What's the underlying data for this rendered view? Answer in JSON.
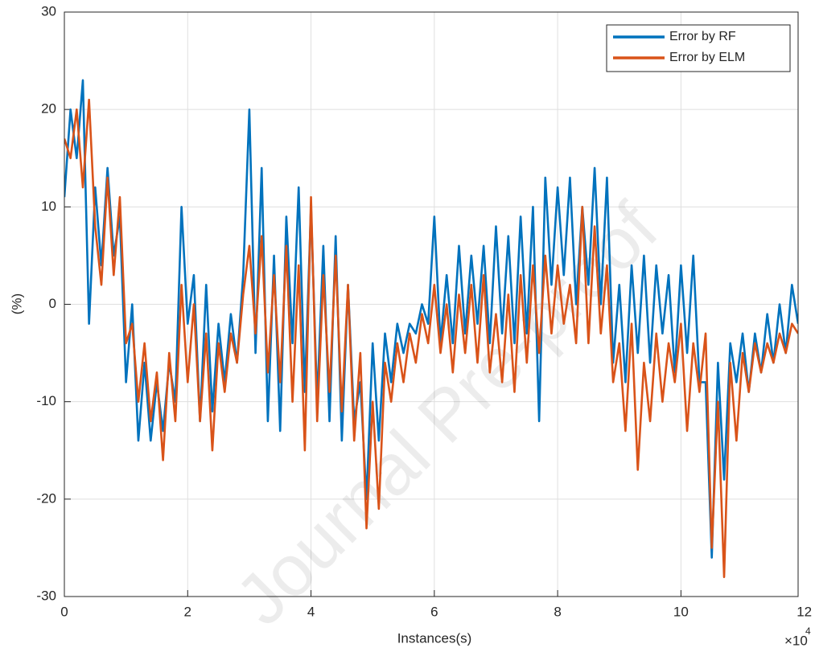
{
  "chart_data": {
    "type": "line",
    "x_label": "Instances(s)",
    "y_label": "(%)",
    "x_exponent_base": "×10",
    "x_exponent_power": "4",
    "watermark": "Journal Pre-proof",
    "x": [
      0,
      1000,
      2000,
      3000,
      4000,
      5000,
      6000,
      7000,
      8000,
      9000,
      10000,
      11000,
      12000,
      13000,
      14000,
      15000,
      16000,
      17000,
      18000,
      19000,
      20000,
      21000,
      22000,
      23000,
      24000,
      25000,
      26000,
      27000,
      28000,
      29000,
      30000,
      31000,
      32000,
      33000,
      34000,
      35000,
      36000,
      37000,
      38000,
      39000,
      40000,
      41000,
      42000,
      43000,
      44000,
      45000,
      46000,
      47000,
      48000,
      49000,
      50000,
      51000,
      52000,
      53000,
      54000,
      55000,
      56000,
      57000,
      58000,
      59000,
      60000,
      61000,
      62000,
      63000,
      64000,
      65000,
      66000,
      67000,
      68000,
      69000,
      70000,
      71000,
      72000,
      73000,
      74000,
      75000,
      76000,
      77000,
      78000,
      79000,
      80000,
      81000,
      82000,
      83000,
      84000,
      85000,
      86000,
      87000,
      88000,
      89000,
      90000,
      91000,
      92000,
      93000,
      94000,
      95000,
      96000,
      97000,
      98000,
      99000,
      100000,
      101000,
      102000,
      103000,
      104000,
      105000,
      106000,
      107000,
      108000,
      109000,
      110000,
      111000,
      112000,
      113000,
      114000,
      115000,
      116000,
      117000,
      118000,
      119000
    ],
    "series": [
      {
        "name": "Error by RF",
        "color": "#0072BD",
        "values": [
          11,
          20,
          15,
          23,
          -2,
          12,
          4,
          14,
          5,
          9,
          -8,
          0,
          -14,
          -6,
          -14,
          -8,
          -13,
          -6,
          -10,
          10,
          -2,
          3,
          -12,
          2,
          -11,
          -2,
          -8,
          -1,
          -6,
          3,
          20,
          -5,
          14,
          -12,
          5,
          -13,
          9,
          -4,
          12,
          -9,
          10,
          -10,
          6,
          -12,
          7,
          -14,
          2,
          -12,
          -8,
          -20,
          -4,
          -14,
          -3,
          -8,
          -2,
          -5,
          -2,
          -3,
          0,
          -2,
          9,
          -4,
          3,
          -4,
          6,
          -3,
          5,
          -2,
          6,
          -4,
          8,
          -3,
          7,
          -4,
          9,
          -3,
          10,
          -12,
          13,
          2,
          12,
          3,
          13,
          0,
          10,
          2,
          14,
          0,
          13,
          -6,
          2,
          -8,
          4,
          -5,
          5,
          -6,
          4,
          -3,
          3,
          -7,
          4,
          -5,
          5,
          -8,
          -8,
          -26,
          -6,
          -18,
          -4,
          -8,
          -3,
          -9,
          -3,
          -7,
          -1,
          -6,
          0,
          -5,
          2,
          -2
        ]
      },
      {
        "name": "Error by ELM",
        "color": "#D95319",
        "values": [
          17,
          15,
          20,
          12,
          21,
          8,
          2,
          13,
          3,
          11,
          -4,
          -2,
          -10,
          -4,
          -12,
          -7,
          -16,
          -5,
          -12,
          2,
          -8,
          0,
          -12,
          -3,
          -15,
          -4,
          -9,
          -3,
          -6,
          1,
          6,
          -3,
          7,
          -7,
          3,
          -8,
          6,
          -10,
          4,
          -15,
          11,
          -12,
          3,
          -9,
          5,
          -11,
          2,
          -14,
          -5,
          -23,
          -10,
          -21,
          -6,
          -10,
          -4,
          -8,
          -3,
          -6,
          -1,
          -4,
          2,
          -5,
          0,
          -7,
          1,
          -5,
          2,
          -6,
          3,
          -7,
          -1,
          -8,
          1,
          -9,
          3,
          -6,
          4,
          -5,
          5,
          -3,
          4,
          -2,
          2,
          -4,
          10,
          -4,
          8,
          -3,
          4,
          -8,
          -4,
          -13,
          -2,
          -17,
          -6,
          -12,
          -3,
          -10,
          -4,
          -8,
          -2,
          -13,
          -4,
          -9,
          -3,
          -25,
          -10,
          -28,
          -6,
          -14,
          -5,
          -9,
          -4,
          -7,
          -4,
          -6,
          -3,
          -5,
          -2,
          -3
        ]
      }
    ],
    "xlim": [
      0,
      119000
    ],
    "xticks": [
      {
        "value": 0,
        "label": "0"
      },
      {
        "value": 20000,
        "label": "2"
      },
      {
        "value": 40000,
        "label": "4"
      },
      {
        "value": 60000,
        "label": "6"
      },
      {
        "value": 80000,
        "label": "8"
      },
      {
        "value": 100000,
        "label": "10"
      },
      {
        "value": 120000,
        "label": "12"
      }
    ],
    "ylim": [
      -30,
      30
    ],
    "yticks": [
      -30,
      -20,
      -10,
      0,
      10,
      20,
      30
    ],
    "grid": true,
    "legend": "top-right"
  }
}
